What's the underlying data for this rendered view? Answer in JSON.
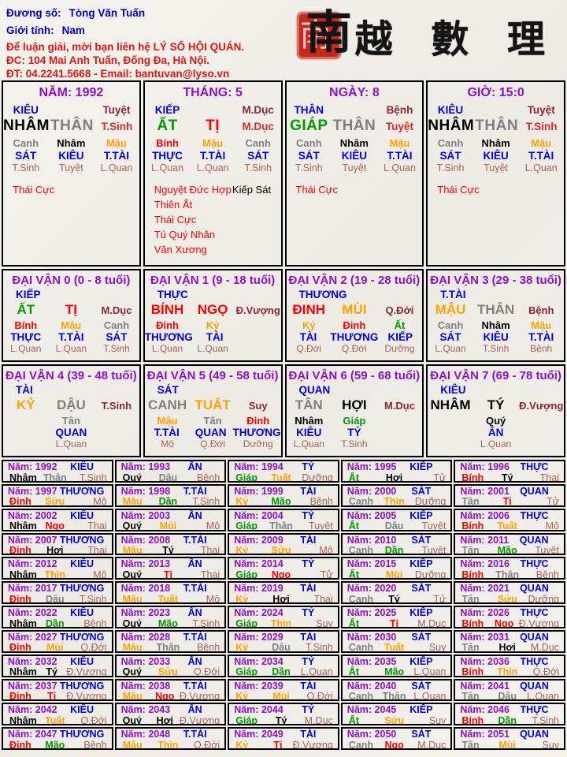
{
  "colors": {
    "purple": "#8E10C9",
    "blue": "#0000E6",
    "red": "#FF0000",
    "crimson": "#D42C2C",
    "darkred": "#8B2635",
    "green": "#009900",
    "orange": "#FFA200",
    "gray": "#7F7F7F",
    "black": "#000000",
    "rosy": "#A5615A",
    "header_blue": "#0000CC",
    "header_red": "#E21414",
    "seal_red": "#C5291D"
  },
  "header": {
    "name_label": "Đương số:",
    "name_value": "Tòng Văn Tuấn",
    "gender_label": "Giới tính:",
    "gender_value": "Nam",
    "contact1": "Để luận giải, mời bạn liên hệ LÝ SỐ HỘI QUÁN.",
    "contact2": "ĐC: 104 Mai Anh Tuấn, Đống Đa, Hà Nội.",
    "contact3": "ĐT: 04.2241.5668 - Email: bantuvan@lyso.vn",
    "logo_seal_char": "南",
    "logo_chars": "越 數 理"
  },
  "year_prefix": "Năm:",
  "pillars": [
    {
      "title": "NĂM: 1992",
      "god": "KIÊU",
      "van_top": "Tuyệt",
      "can": "NHÂM",
      "chi": "THÂN",
      "van_main": "T.Sinh",
      "h_can": [
        "Canh",
        "Nhâm",
        "Mậu"
      ],
      "h_god": [
        "SÁT",
        "KIÊU",
        "T.TÀI"
      ],
      "h_van": [
        "T.Sinh",
        "Tuyệt",
        "L.Quan"
      ],
      "star_lines": [
        [
          [
            "Thái Cực",
            "red"
          ]
        ]
      ]
    },
    {
      "title": "THÁNG: 5",
      "god": "KIẾP",
      "van_top": "M.Dục",
      "can": "ẤT",
      "chi": "TỊ",
      "van_main": "M.Dục",
      "h_can": [
        "Bính",
        "Mậu",
        "Canh"
      ],
      "h_god": [
        "THỰC",
        "T.TÀI",
        "SÁT"
      ],
      "h_van": [
        "L.Quan",
        "L.Quan",
        "T.Sinh"
      ],
      "star_lines": [
        [
          [
            "Nguyệt Đức Hợp",
            "red"
          ],
          [
            "Kiếp Sát",
            "black"
          ]
        ],
        [
          [
            "Thiên Ất",
            "red"
          ]
        ],
        [
          [
            "Thái Cực",
            "red"
          ]
        ],
        [
          [
            "Tú Quý Nhân",
            "red"
          ]
        ],
        [
          [
            "Văn Xương",
            "red"
          ]
        ]
      ]
    },
    {
      "title": "NGÀY: 8",
      "god": "THÂN",
      "van_top": "Bệnh",
      "can": "GIÁP",
      "chi": "THÂN",
      "van_main": "Tuyệt",
      "h_can": [
        "Canh",
        "Nhâm",
        "Mậu"
      ],
      "h_god": [
        "SÁT",
        "KIÊU",
        "T.TÀI"
      ],
      "h_van": [
        "T.Sinh",
        "Tuyệt",
        "L.Quan"
      ],
      "star_lines": [
        [
          [
            "Thái Cực",
            "red"
          ]
        ]
      ]
    },
    {
      "title": "GIỜ: 15:0",
      "god": "KIÊU",
      "van_top": "Tuyệt",
      "can": "NHÂM",
      "chi": "THÂN",
      "van_main": "T.Sinh",
      "h_can": [
        "Canh",
        "Nhâm",
        "Mậu"
      ],
      "h_god": [
        "SÁT",
        "KIÊU",
        "T.TÀI"
      ],
      "h_van": [
        "T.Sinh",
        "Tuyệt",
        "L.Quan"
      ],
      "star_lines": [
        [
          [
            "Thái Cực",
            "red"
          ]
        ]
      ]
    }
  ],
  "daivan": [
    {
      "title": "ĐẠI VẬN 0 (0 - 8 tuổi)",
      "god": "KIẾP",
      "can": "ẤT",
      "chi": "TỊ",
      "van": "M.Dục",
      "h_can": [
        "Bính",
        "Mậu",
        "Canh"
      ],
      "h_god": [
        "THỰC",
        "T.TÀI",
        "SÁT"
      ],
      "h_van": [
        "L.Quan",
        "L.Quan",
        "T.Sinh"
      ]
    },
    {
      "title": "ĐẠI VẬN 1 (9 - 18 tuổi)",
      "god": "THỰC",
      "can": "BÍNH",
      "chi": "NGỌ",
      "van": "Đ.Vượng",
      "h_can": [
        "Đinh",
        "Kỷ",
        ""
      ],
      "h_god": [
        "THƯƠNG",
        "TÀI",
        ""
      ],
      "h_van": [
        "L.Quan",
        "L.Quan",
        ""
      ]
    },
    {
      "title": "ĐẠI VẬN 2 (19 - 28 tuổi)",
      "god": "THƯƠNG",
      "can": "ĐINH",
      "chi": "MÙI",
      "van": "Q.Đới",
      "h_can": [
        "Kỷ",
        "Đinh",
        "Ất"
      ],
      "h_god": [
        "TÀI",
        "THƯƠNG",
        "KIẾP"
      ],
      "h_van": [
        "Q.Đới",
        "Q.Đới",
        "Dưỡng"
      ]
    },
    {
      "title": "ĐẠI VẬN 3 (29 - 38 tuổi)",
      "god": "T.TÀI",
      "can": "MẬU",
      "chi": "THÂN",
      "van": "Bệnh",
      "h_can": [
        "Canh",
        "Nhâm",
        "Mậu"
      ],
      "h_god": [
        "SÁT",
        "KIÊU",
        "T.TÀI"
      ],
      "h_van": [
        "L.Quan",
        "T.Sinh",
        "Bệnh"
      ]
    },
    {
      "title": "ĐẠI VẬN 4 (39 - 48 tuổi)",
      "god": "TÀI",
      "can": "KỶ",
      "chi": "DẬU",
      "van": "T.Sinh",
      "h_can": [
        "",
        "Tân",
        ""
      ],
      "h_god": [
        "",
        "QUAN",
        ""
      ],
      "h_van": [
        "",
        "L.Quan",
        ""
      ]
    },
    {
      "title": "ĐẠI VẬN 5 (49 - 58 tuổi)",
      "god": "SÁT",
      "can": "CANH",
      "chi": "TUẤT",
      "van": "Suy",
      "h_can": [
        "Mậu",
        "Tân",
        "Đinh"
      ],
      "h_god": [
        "T.TÀI",
        "QUAN",
        "THƯƠNG"
      ],
      "h_van": [
        "Mộ",
        "Q.Đới",
        "Dưỡng"
      ]
    },
    {
      "title": "ĐẠI VẬN 6 (59 - 68 tuổi)",
      "god": "QUAN",
      "can": "TÂN",
      "chi": "HỢI",
      "van": "M.Dục",
      "h_can": [
        "Nhâm",
        "Giáp",
        ""
      ],
      "h_god": [
        "KIÊU",
        "TỶ",
        ""
      ],
      "h_van": [
        "L.Quan",
        "T.Sinh",
        ""
      ]
    },
    {
      "title": "ĐẠI VẬN 7 (69 - 78 tuổi)",
      "god": "KIÊU",
      "can": "NHÂM",
      "chi": "TÝ",
      "van": "Đ.Vượng",
      "h_can": [
        "",
        "Quý",
        ""
      ],
      "h_god": [
        "",
        "ẤN",
        ""
      ],
      "h_van": [
        "",
        "L.Quan",
        ""
      ]
    }
  ],
  "years": [
    [
      "1992",
      "KIÊU",
      "Nhâm",
      "Thân",
      "T.Sinh"
    ],
    [
      "1993",
      "ẤN",
      "Quý",
      "Dậu",
      "Bệnh"
    ],
    [
      "1994",
      "TỶ",
      "Giáp",
      "Tuất",
      "Dưỡng"
    ],
    [
      "1995",
      "KIẾP",
      "Ất",
      "Hợi",
      "Tử"
    ],
    [
      "1996",
      "THỰC",
      "Bính",
      "Tý",
      "Thai"
    ],
    [
      "1997",
      "THƯƠNG",
      "Đinh",
      "Sửu",
      "Mộ"
    ],
    [
      "1998",
      "T.TÀI",
      "Mậu",
      "Dần",
      "T.Sinh"
    ],
    [
      "1999",
      "TÀI",
      "Kỷ",
      "Mão",
      "Bệnh"
    ],
    [
      "2000",
      "SÁT",
      "Canh",
      "Thìn",
      "Dưỡng"
    ],
    [
      "2001",
      "QUAN",
      "Tân",
      "Tị",
      "Tử"
    ],
    [
      "2002",
      "KIÊU",
      "Nhâm",
      "Ngọ",
      "Thai"
    ],
    [
      "2003",
      "ẤN",
      "Quý",
      "Mùi",
      "Mộ"
    ],
    [
      "2004",
      "TỶ",
      "Giáp",
      "Thân",
      "Tuyệt"
    ],
    [
      "2005",
      "KIẾP",
      "Ất",
      "Dậu",
      "Tuyệt"
    ],
    [
      "2006",
      "THỰC",
      "Bính",
      "Tuất",
      "Mộ"
    ],
    [
      "2007",
      "THƯƠNG",
      "Đinh",
      "Hợi",
      "Thai"
    ],
    [
      "2008",
      "T.TÀI",
      "Mậu",
      "Tý",
      "Thai"
    ],
    [
      "2009",
      "TÀI",
      "Kỷ",
      "Sửu",
      "Mộ"
    ],
    [
      "2010",
      "SÁT",
      "Canh",
      "Dần",
      "Tuyệt"
    ],
    [
      "2011",
      "QUAN",
      "Tân",
      "Mão",
      "Tuyệt"
    ],
    [
      "2012",
      "KIÊU",
      "Nhâm",
      "Thìn",
      "Mộ"
    ],
    [
      "2013",
      "ẤN",
      "Quý",
      "Tị",
      "Thai"
    ],
    [
      "2014",
      "TỶ",
      "Giáp",
      "Ngọ",
      "Tử"
    ],
    [
      "2015",
      "KIẾP",
      "Ất",
      "Mùi",
      "Dưỡng"
    ],
    [
      "2016",
      "THỰC",
      "Bính",
      "Thân",
      "Bệnh"
    ],
    [
      "2017",
      "THƯƠNG",
      "Đinh",
      "Dậu",
      "T.Sinh"
    ],
    [
      "2018",
      "T.TÀI",
      "Mậu",
      "Tuất",
      "Mộ"
    ],
    [
      "2019",
      "TÀI",
      "Kỷ",
      "Hợi",
      "Thai"
    ],
    [
      "2020",
      "SÁT",
      "Canh",
      "Tý",
      "Tử"
    ],
    [
      "2021",
      "QUAN",
      "Tân",
      "Sửu",
      "Dưỡng"
    ],
    [
      "2022",
      "KIÊU",
      "Nhâm",
      "Dần",
      "Bệnh"
    ],
    [
      "2023",
      "ẤN",
      "Quý",
      "Mão",
      "T.Sinh"
    ],
    [
      "2024",
      "TỶ",
      "Giáp",
      "Thìn",
      "Suy"
    ],
    [
      "2025",
      "KIẾP",
      "Ất",
      "Tị",
      "M.Dục"
    ],
    [
      "2026",
      "THỰC",
      "Bính",
      "Ngọ",
      "Đ.Vượng"
    ],
    [
      "2027",
      "THƯƠNG",
      "Đinh",
      "Mùi",
      "Q.Đới"
    ],
    [
      "2028",
      "T.TÀI",
      "Mậu",
      "Thân",
      "Bệnh"
    ],
    [
      "2029",
      "TÀI",
      "Kỷ",
      "Dậu",
      "T.Sinh"
    ],
    [
      "2030",
      "SÁT",
      "Canh",
      "Tuất",
      "Suy"
    ],
    [
      "2031",
      "QUAN",
      "Tân",
      "Hợi",
      "M.Dục"
    ],
    [
      "2032",
      "KIÊU",
      "Nhâm",
      "Tý",
      "Đ.Vượng"
    ],
    [
      "2033",
      "ẤN",
      "Quý",
      "Sửu",
      "Q.Đới"
    ],
    [
      "2034",
      "TỶ",
      "Giáp",
      "Dần",
      "L.Quan"
    ],
    [
      "2035",
      "KIẾP",
      "Ất",
      "Mão",
      "L.Quan"
    ],
    [
      "2036",
      "THỰC",
      "Bính",
      "Thìn",
      "Q.Đới"
    ],
    [
      "2037",
      "THƯƠNG",
      "Đinh",
      "Tị",
      "Đ.Vượng"
    ],
    [
      "2038",
      "T.TÀI",
      "Mậu",
      "Ngọ",
      "Đ.Vượng"
    ],
    [
      "2039",
      "TÀI",
      "Kỷ",
      "Mùi",
      "Q.Đới"
    ],
    [
      "2040",
      "SÁT",
      "Canh",
      "Thân",
      "L.Quan"
    ],
    [
      "2041",
      "QUAN",
      "Tân",
      "Dậu",
      "L.Quan"
    ],
    [
      "2042",
      "KIÊU",
      "Nhâm",
      "Tuất",
      "Q.Đới"
    ],
    [
      "2043",
      "ẤN",
      "Quý",
      "Hợi",
      "Đ.Vượng"
    ],
    [
      "2044",
      "TỶ",
      "Giáp",
      "Tý",
      "M.Dục"
    ],
    [
      "2045",
      "KIẾP",
      "Ất",
      "Sửu",
      "Suy"
    ],
    [
      "2046",
      "THỰC",
      "Bính",
      "Dần",
      "T.Sinh"
    ],
    [
      "2047",
      "THƯƠNG",
      "Đinh",
      "Mão",
      "Bệnh"
    ],
    [
      "2048",
      "T.TÀI",
      "Mậu",
      "Thìn",
      "Q.Đới"
    ],
    [
      "2049",
      "TÀI",
      "Kỷ",
      "Tị",
      "Đ.Vượng"
    ],
    [
      "2050",
      "SÁT",
      "Canh",
      "Ngọ",
      "M.Dục"
    ],
    [
      "2051",
      "QUAN",
      "Tân",
      "Mùi",
      "Suy"
    ]
  ]
}
